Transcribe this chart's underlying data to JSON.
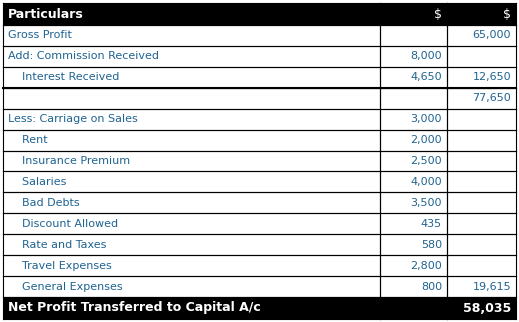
{
  "header": [
    "Particulars",
    "$",
    "$"
  ],
  "rows": [
    {
      "label": "Gross Profit",
      "col1": "",
      "col2": "65,000",
      "color": "#1F6391"
    },
    {
      "label": "Add: Commission Received",
      "col1": "8,000",
      "col2": "",
      "color": "#1F6391"
    },
    {
      "label": "    Interest Received",
      "col1": "4,650",
      "col2": "12,650",
      "color": "#1F6391"
    },
    {
      "label": "",
      "col1": "",
      "col2": "77,650",
      "color": "#1F6391",
      "top_border": true
    },
    {
      "label": "Less: Carriage on Sales",
      "col1": "3,000",
      "col2": "",
      "color": "#1F6391"
    },
    {
      "label": "    Rent",
      "col1": "2,000",
      "col2": "",
      "color": "#1F6391"
    },
    {
      "label": "    Insurance Premium",
      "col1": "2,500",
      "col2": "",
      "color": "#1F6391"
    },
    {
      "label": "    Salaries",
      "col1": "4,000",
      "col2": "",
      "color": "#1F6391"
    },
    {
      "label": "    Bad Debts",
      "col1": "3,500",
      "col2": "",
      "color": "#1F6391"
    },
    {
      "label": "    Discount Allowed",
      "col1": "435",
      "col2": "",
      "color": "#1F6391"
    },
    {
      "label": "    Rate and Taxes",
      "col1": "580",
      "col2": "",
      "color": "#1F6391"
    },
    {
      "label": "    Travel Expenses",
      "col1": "2,800",
      "col2": "",
      "color": "#1F6391"
    },
    {
      "label": "    General Expenses",
      "col1": "800",
      "col2": "19,615",
      "color": "#1F6391"
    },
    {
      "label": "Net Profit Transferred to Capital A/c",
      "col1": "",
      "col2": "58,035",
      "color": "#FFFFFF",
      "bold": true,
      "footer": true
    }
  ],
  "header_bg": "#000000",
  "header_text_color": "#FFFFFF",
  "footer_bg": "#000000",
  "footer_text_color": "#FFFFFF",
  "cell_bg": "#FFFFFF",
  "border_color": "#000000",
  "font_size": 8.0,
  "header_font_size": 9.0
}
